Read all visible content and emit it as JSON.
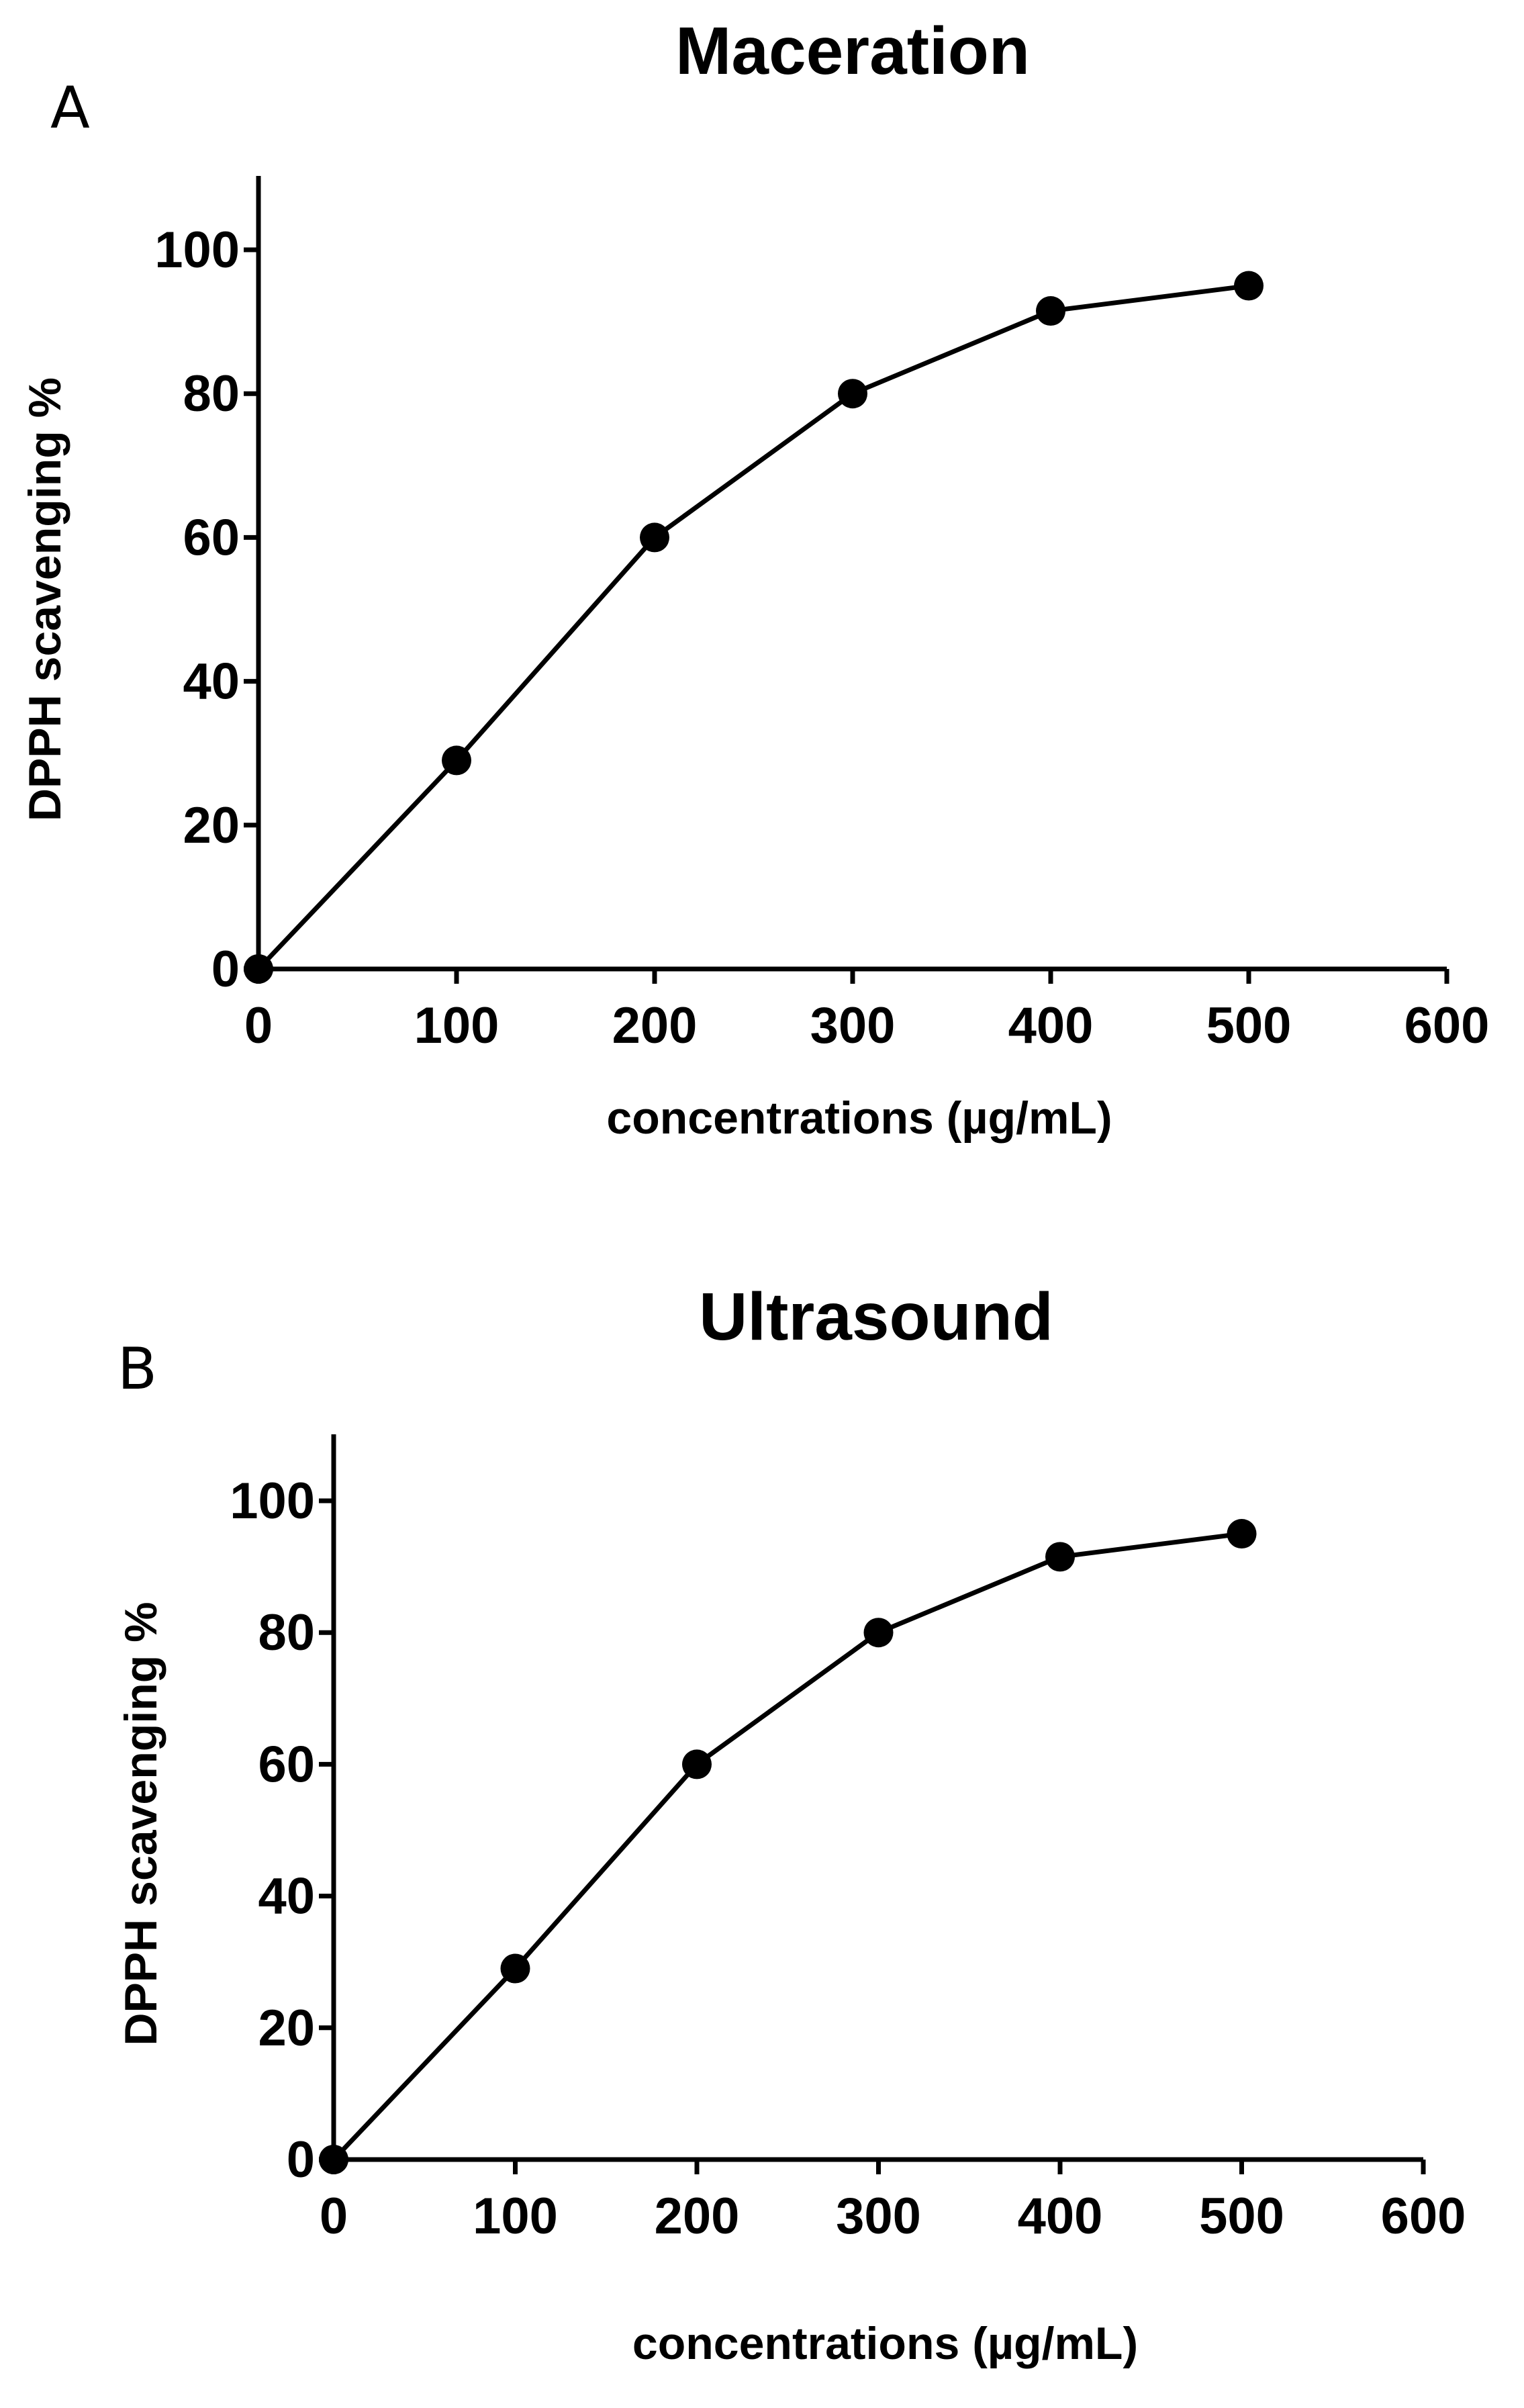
{
  "chart_data": [
    {
      "panel": "A",
      "type": "line",
      "title": "Maceration",
      "xlabel": "concentrations (µg/mL)",
      "ylabel": "DPPH scavenging %",
      "x": [
        0,
        100,
        200,
        300,
        400,
        500
      ],
      "values": [
        0,
        29,
        60,
        80,
        91.5,
        95
      ],
      "xticks": [
        "0",
        "100",
        "200",
        "300",
        "400",
        "500",
        "600"
      ],
      "yticks": [
        "0",
        "20",
        "40",
        "60",
        "80",
        "100"
      ],
      "xlim": [
        0,
        600
      ],
      "ylim": [
        0,
        110
      ],
      "grid": false,
      "marker": "filled-circle",
      "color": "#000000"
    },
    {
      "panel": "B",
      "type": "line",
      "title": "Ultrasound",
      "xlabel": "concentrations (µg/mL)",
      "ylabel": "DPPH scavenging %",
      "x": [
        0,
        100,
        200,
        300,
        400,
        500
      ],
      "values": [
        0,
        29,
        60,
        80,
        91.5,
        95
      ],
      "xticks": [
        "0",
        "100",
        "200",
        "300",
        "400",
        "500",
        "600"
      ],
      "yticks": [
        "0",
        "20",
        "40",
        "60",
        "80",
        "100"
      ],
      "xlim": [
        0,
        600
      ],
      "ylim": [
        0,
        110
      ],
      "grid": false,
      "marker": "filled-circle",
      "color": "#000000"
    }
  ]
}
